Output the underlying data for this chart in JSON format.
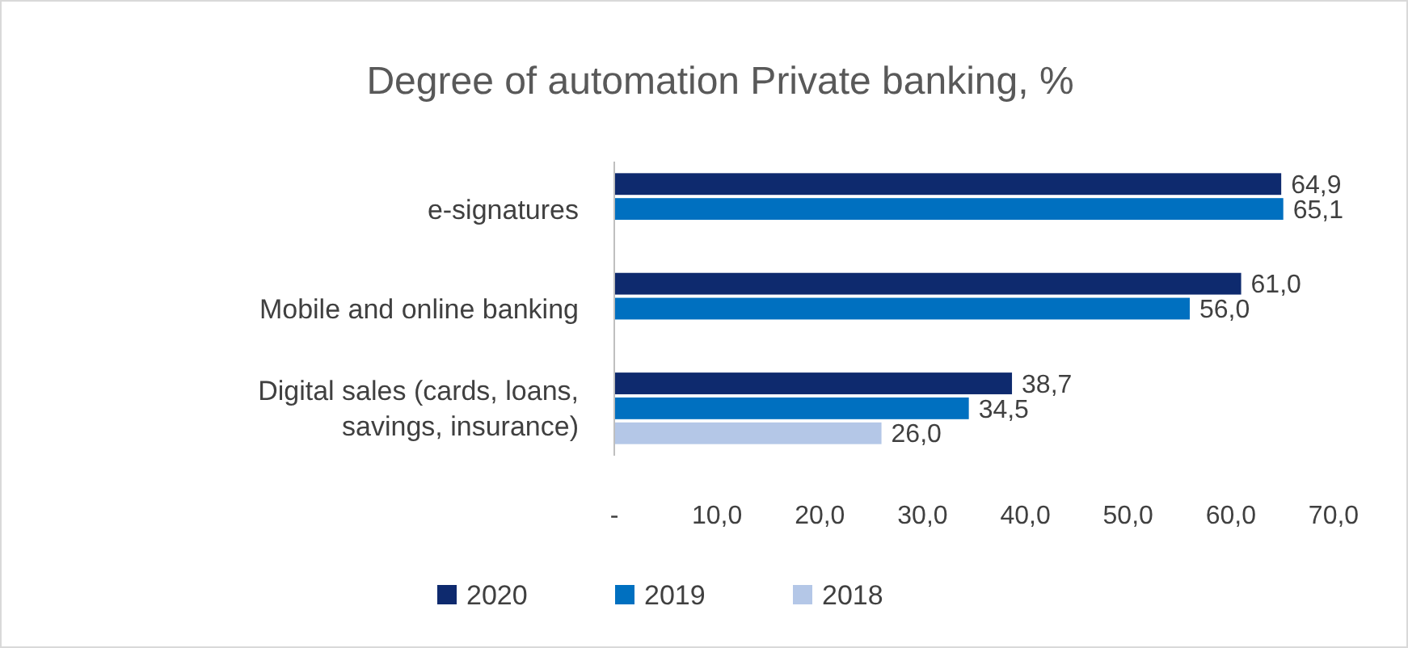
{
  "chart_data": {
    "type": "bar",
    "orientation": "horizontal",
    "title": "Degree of automation Private banking, %",
    "categories": [
      "e-signatures",
      "Mobile and online banking",
      "Digital sales (cards, loans, savings, insurance)"
    ],
    "series": [
      {
        "name": "2020",
        "color": "#0e2a6e",
        "values": [
          64.9,
          61.0,
          38.7
        ],
        "value_labels": [
          "64,9",
          "61,0",
          "38,7"
        ]
      },
      {
        "name": "2019",
        "color": "#0070c0",
        "values": [
          65.1,
          56.0,
          34.5
        ],
        "value_labels": [
          "65,1",
          "56,0",
          "34,5"
        ]
      },
      {
        "name": "2018",
        "color": "#b4c7e7",
        "values": [
          null,
          null,
          26.0
        ],
        "value_labels": [
          null,
          null,
          "26,0"
        ]
      }
    ],
    "xlim": [
      0,
      70
    ],
    "xticks": [
      {
        "value": 0,
        "label": "-"
      },
      {
        "value": 10,
        "label": "10,0"
      },
      {
        "value": 20,
        "label": "20,0"
      },
      {
        "value": 30,
        "label": "30,0"
      },
      {
        "value": 40,
        "label": "40,0"
      },
      {
        "value": 50,
        "label": "50,0"
      },
      {
        "value": 60,
        "label": "60,0"
      },
      {
        "value": 70,
        "label": "70,0"
      }
    ],
    "grid": false,
    "legend": "bottom"
  }
}
